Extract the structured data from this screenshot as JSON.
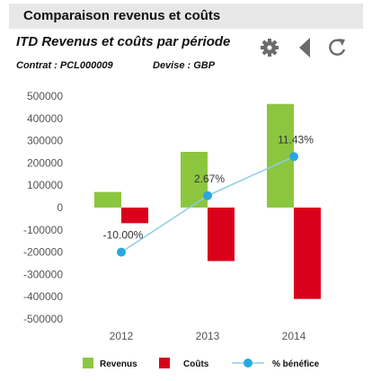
{
  "header": {
    "title": "Comparaison revenus et coûts"
  },
  "subtitle": "ITD Revenus et coûts par période",
  "meta": {
    "contract": "Contrat : PCL000009",
    "currency": "Devise : GBP"
  },
  "toolbar": {
    "icons": [
      "gear-icon",
      "back-triangle-icon",
      "refresh-icon"
    ]
  },
  "colors": {
    "revenue": "#8cc63f",
    "costs": "#d9001b",
    "margin": "#29a8e0",
    "margin_line": "#8ccdea"
  },
  "chart_data": {
    "type": "bar",
    "categories": [
      "2012",
      "2013",
      "2014"
    ],
    "series": [
      {
        "name": "Revenus",
        "type": "bar",
        "values": [
          70000,
          250000,
          465000
        ]
      },
      {
        "name": "Coûts",
        "type": "bar",
        "values": [
          -70000,
          -240000,
          -410000
        ]
      },
      {
        "name": "% bénéfice",
        "type": "line",
        "values": [
          -10.0,
          2.67,
          11.43
        ],
        "labels": [
          "-10.00%",
          "2.67%",
          "11.43%"
        ]
      }
    ],
    "y_ticks": [
      "500000",
      "400000",
      "300000",
      "200000",
      "100000",
      "0",
      "-100000",
      "-200000",
      "-300000",
      "-400000",
      "-500000"
    ],
    "ylim": [
      -500000,
      500000
    ],
    "secondary_ylim": [
      -25,
      25
    ],
    "grid": false,
    "legend_position": "bottom"
  }
}
